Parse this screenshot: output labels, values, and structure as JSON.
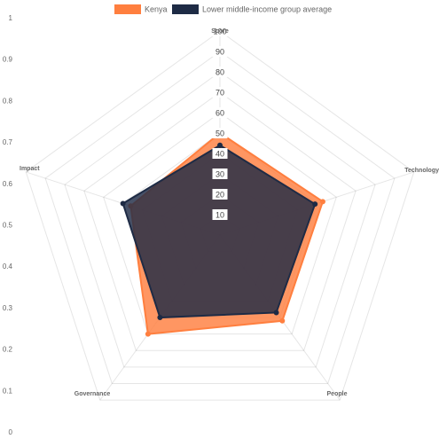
{
  "chart_data": {
    "type": "radar",
    "axes": [
      "Score",
      "Technology",
      "People",
      "Governance",
      "Impact"
    ],
    "r_ticks": [
      "10",
      "20",
      "30",
      "40",
      "50",
      "60",
      "70",
      "80",
      "90",
      "100"
    ],
    "r_range": [
      0,
      100
    ],
    "y_ticks": [
      "0",
      "0.1",
      "0.2",
      "0.3",
      "0.4",
      "0.5",
      "0.6",
      "0.7",
      "0.8",
      "0.9",
      "1"
    ],
    "series": [
      {
        "name": "Kenya",
        "values": [
          50,
          53,
          52,
          60,
          46
        ],
        "color": "#ff7f3f"
      },
      {
        "name": "Lower middle-income group average",
        "values": [
          44,
          49,
          47,
          50,
          50
        ],
        "color": "#1e2b45"
      }
    ],
    "legend_position": "top"
  }
}
